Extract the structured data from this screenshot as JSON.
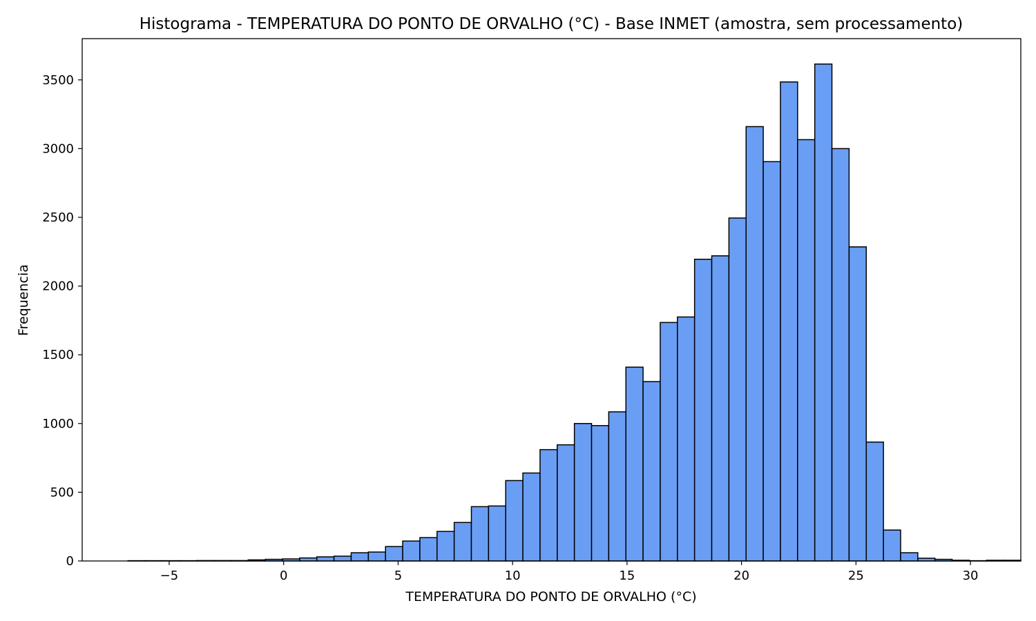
{
  "chart_data": {
    "type": "bar",
    "subtype": "histogram",
    "title": "Histograma - TEMPERATURA DO PONTO DE ORVALHO (°C) - Base INMET (amostra, sem processamento)",
    "xlabel": "TEMPERATURA DO PONTO DE ORVALHO (°C)",
    "ylabel": "Frequencia",
    "xlim": [
      -8.8,
      32.2
    ],
    "ylim": [
      0,
      3800
    ],
    "bin_start": -6.8,
    "bin_width": 0.75,
    "values": [
      2,
      2,
      2,
      2,
      3,
      3,
      3,
      8,
      12,
      15,
      22,
      30,
      35,
      60,
      65,
      105,
      145,
      170,
      215,
      280,
      395,
      400,
      585,
      640,
      810,
      845,
      1000,
      985,
      1085,
      1410,
      1305,
      1735,
      1775,
      2195,
      2220,
      2495,
      3160,
      2905,
      3485,
      3065,
      3615,
      3000,
      2285,
      865,
      225,
      60,
      20,
      12,
      5,
      2,
      5,
      5
    ],
    "xticks": [
      -5,
      0,
      5,
      10,
      15,
      20,
      25,
      30
    ],
    "xtick_labels": [
      "−5",
      "0",
      "5",
      "10",
      "15",
      "20",
      "25",
      "30"
    ],
    "yticks": [
      0,
      500,
      1000,
      1500,
      2000,
      2500,
      3000,
      3500
    ],
    "ytick_labels": [
      "0",
      "500",
      "1000",
      "1500",
      "2000",
      "2500",
      "3000",
      "3500"
    ],
    "bar_color": "#6a9ef5",
    "edge_color": "#000000",
    "grid": false,
    "legend": "none"
  }
}
